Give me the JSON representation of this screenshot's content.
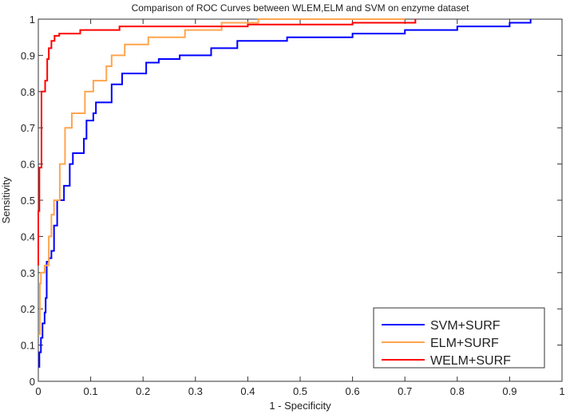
{
  "chart_data": {
    "type": "line",
    "title": "Comparison of ROC Curves between WLEM,ELM and SVM on enzyme dataset",
    "xlabel": "1 - Specificity",
    "ylabel": "Sensitivity",
    "xlim": [
      0,
      1
    ],
    "ylim": [
      0,
      1
    ],
    "xticks": [
      "0",
      "0.1",
      "0.2",
      "0.3",
      "0.4",
      "0.5",
      "0.6",
      "0.7",
      "0.8",
      "0.9",
      "1"
    ],
    "yticks": [
      "0",
      "0.1",
      "0.2",
      "0.3",
      "0.4",
      "0.5",
      "0.6",
      "0.7",
      "0.8",
      "0.9",
      "1"
    ],
    "grid": false,
    "legend_position": "bottom-right",
    "series": [
      {
        "name": "SVM+SURF",
        "color": "#0000ff",
        "points": [
          [
            0,
            0.04
          ],
          [
            0.002,
            0.08
          ],
          [
            0.005,
            0.12
          ],
          [
            0.008,
            0.16
          ],
          [
            0.012,
            0.19
          ],
          [
            0.014,
            0.23
          ],
          [
            0.016,
            0.33
          ],
          [
            0.02,
            0.34
          ],
          [
            0.025,
            0.36
          ],
          [
            0.03,
            0.43
          ],
          [
            0.036,
            0.5
          ],
          [
            0.049,
            0.54
          ],
          [
            0.06,
            0.6
          ],
          [
            0.066,
            0.63
          ],
          [
            0.087,
            0.67
          ],
          [
            0.092,
            0.72
          ],
          [
            0.105,
            0.74
          ],
          [
            0.11,
            0.77
          ],
          [
            0.14,
            0.82
          ],
          [
            0.16,
            0.85
          ],
          [
            0.206,
            0.88
          ],
          [
            0.23,
            0.89
          ],
          [
            0.27,
            0.9
          ],
          [
            0.33,
            0.92
          ],
          [
            0.38,
            0.94
          ],
          [
            0.475,
            0.95
          ],
          [
            0.6,
            0.96
          ],
          [
            0.7,
            0.97
          ],
          [
            0.8,
            0.98
          ],
          [
            0.9,
            0.99
          ],
          [
            0.94,
            1.0
          ]
        ]
      },
      {
        "name": "ELM+SURF",
        "color": "#ffa54f",
        "points": [
          [
            0,
            0.13
          ],
          [
            0.003,
            0.27
          ],
          [
            0.005,
            0.3
          ],
          [
            0.012,
            0.32
          ],
          [
            0.02,
            0.4
          ],
          [
            0.025,
            0.46
          ],
          [
            0.03,
            0.5
          ],
          [
            0.041,
            0.6
          ],
          [
            0.051,
            0.7
          ],
          [
            0.064,
            0.74
          ],
          [
            0.089,
            0.8
          ],
          [
            0.105,
            0.83
          ],
          [
            0.13,
            0.87
          ],
          [
            0.14,
            0.9
          ],
          [
            0.165,
            0.93
          ],
          [
            0.21,
            0.95
          ],
          [
            0.28,
            0.97
          ],
          [
            0.35,
            0.99
          ],
          [
            0.42,
            1.0
          ],
          [
            0.7,
            1.0
          ]
        ]
      },
      {
        "name": "WELM+SURF",
        "color": "#ff0000",
        "points": [
          [
            0,
            0.32
          ],
          [
            0,
            0.47
          ],
          [
            0.002,
            0.59
          ],
          [
            0.005,
            0.59
          ],
          [
            0.006,
            0.8
          ],
          [
            0.01,
            0.8
          ],
          [
            0.013,
            0.83
          ],
          [
            0.017,
            0.89
          ],
          [
            0.02,
            0.92
          ],
          [
            0.025,
            0.94
          ],
          [
            0.031,
            0.954
          ],
          [
            0.04,
            0.96
          ],
          [
            0.08,
            0.97
          ],
          [
            0.155,
            0.98
          ],
          [
            0.4,
            0.985
          ],
          [
            0.6,
            0.99
          ],
          [
            0.72,
            1.0
          ]
        ]
      }
    ]
  }
}
